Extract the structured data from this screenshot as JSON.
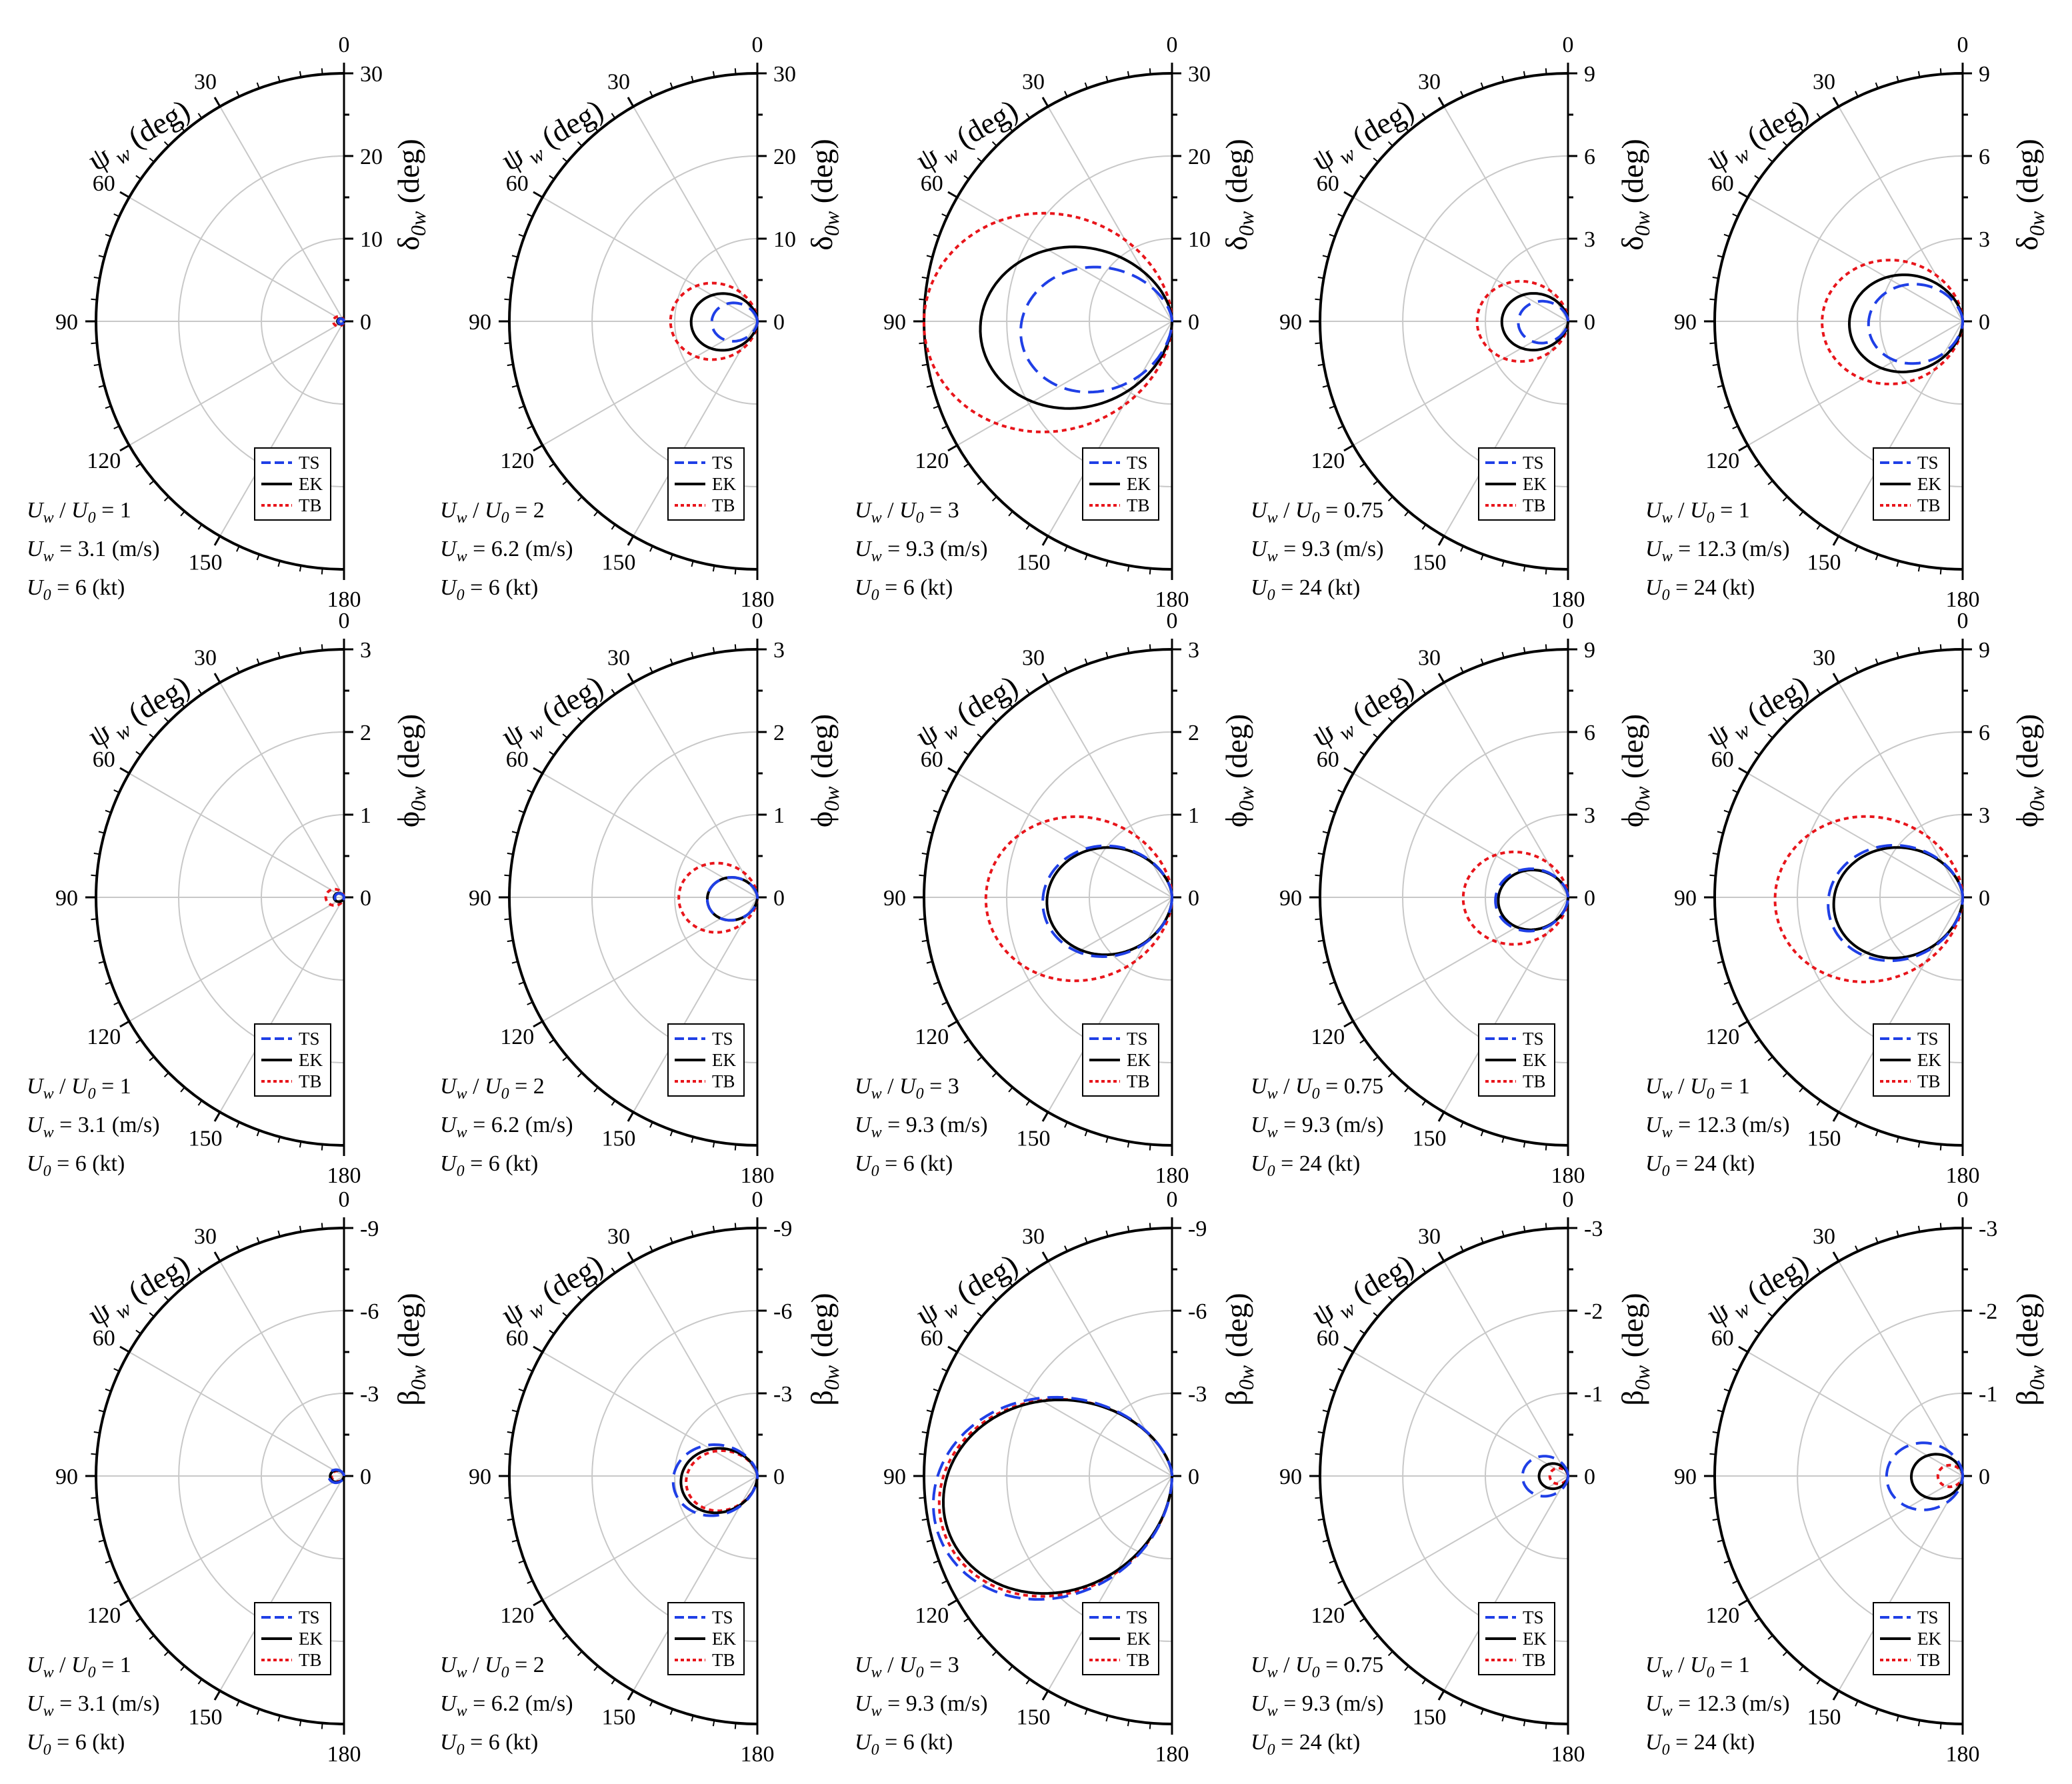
{
  "chart_data": {
    "type": "polar",
    "grid": true,
    "angle_axis": {
      "title": "ψ_w (deg)",
      "symbol": "ψ",
      "subscript": "w",
      "unit": "(deg)",
      "ticks": [
        0,
        30,
        60,
        90,
        120,
        150,
        180
      ]
    },
    "legend": [
      "TS",
      "EK",
      "TB"
    ],
    "colors": {
      "TS": "#1f3fe6",
      "EK": "#000000",
      "TB": "#e8151b"
    },
    "rows": [
      {
        "symbol": "δ",
        "subscript": "0w",
        "unit": "(deg)"
      },
      {
        "symbol": "ϕ",
        "subscript": "0w",
        "unit": "(deg)"
      },
      {
        "symbol": "β",
        "subscript": "0w",
        "unit": "(deg)"
      }
    ],
    "columns": [
      {
        "ratio_text": "U_w / U_0 = 1",
        "ratio": "1",
        "uw": "3.1",
        "uw_unit": "(m/s)",
        "u0": "6",
        "u0_unit": "(kt)"
      },
      {
        "ratio_text": "U_w / U_0 = 2",
        "ratio": "2",
        "uw": "6.2",
        "uw_unit": "(m/s)",
        "u0": "6",
        "u0_unit": "(kt)"
      },
      {
        "ratio_text": "U_w / U_0 = 3",
        "ratio": "3",
        "uw": "9.3",
        "uw_unit": "(m/s)",
        "u0": "6",
        "u0_unit": "(kt)"
      },
      {
        "ratio_text": "U_w / U_0 = 0.75",
        "ratio": "0.75",
        "uw": "9.3",
        "uw_unit": "(m/s)",
        "u0": "24",
        "u0_unit": "(kt)"
      },
      {
        "ratio_text": "U_w / U_0 = 1",
        "ratio": "1",
        "uw": "12.3",
        "uw_unit": "(m/s)",
        "u0": "24",
        "u0_unit": "(kt)"
      }
    ],
    "panels": [
      {
        "row": 0,
        "col": 0,
        "r_ticks": [
          "0",
          "10",
          "20",
          "30"
        ],
        "r_max": 30,
        "series": {
          "TS": {
            "peak": 0.7,
            "center": 90,
            "width": 0.9
          },
          "EK": {
            "peak": 0.8,
            "center": 90,
            "width": 0.9
          },
          "TB": {
            "peak": 1.3,
            "center": 90,
            "width": 1.0
          }
        }
      },
      {
        "row": 0,
        "col": 1,
        "r_ticks": [
          "0",
          "10",
          "20",
          "30"
        ],
        "r_max": 30,
        "series": {
          "TS": {
            "peak": 5.5,
            "center": 95,
            "width": 0.8
          },
          "EK": {
            "peak": 8.0,
            "center": 93,
            "width": 0.85
          },
          "TB": {
            "peak": 10.5,
            "center": 90,
            "width": 0.95
          }
        }
      },
      {
        "row": 0,
        "col": 2,
        "r_ticks": [
          "0",
          "10",
          "20",
          "30"
        ],
        "r_max": 30,
        "series": {
          "TS": {
            "peak": 18.0,
            "center": 105,
            "width": 0.75
          },
          "EK": {
            "peak": 23.0,
            "center": 100,
            "width": 0.8
          },
          "TB": {
            "peak": 30.0,
            "center": 92,
            "width": 0.95
          }
        }
      },
      {
        "row": 0,
        "col": 3,
        "r_ticks": [
          "0",
          "3",
          "6",
          "9"
        ],
        "r_max": 9,
        "series": {
          "TS": {
            "peak": 1.8,
            "center": 95,
            "width": 0.8
          },
          "EK": {
            "peak": 2.4,
            "center": 92,
            "width": 0.85
          },
          "TB": {
            "peak": 3.3,
            "center": 90,
            "width": 0.95
          }
        }
      },
      {
        "row": 0,
        "col": 4,
        "r_ticks": [
          "0",
          "3",
          "6",
          "9"
        ],
        "r_max": 9,
        "series": {
          "TS": {
            "peak": 3.4,
            "center": 98,
            "width": 0.8
          },
          "EK": {
            "peak": 4.1,
            "center": 96,
            "width": 0.85
          },
          "TB": {
            "peak": 5.1,
            "center": 92,
            "width": 0.95
          }
        }
      },
      {
        "row": 1,
        "col": 0,
        "r_ticks": [
          "0",
          "1",
          "2",
          "3"
        ],
        "r_max": 3,
        "series": {
          "TS": {
            "peak": 0.11,
            "center": 92,
            "width": 0.9
          },
          "EK": {
            "peak": 0.12,
            "center": 92,
            "width": 0.9
          },
          "TB": {
            "peak": 0.22,
            "center": 90,
            "width": 1.0
          }
        }
      },
      {
        "row": 1,
        "col": 1,
        "r_ticks": [
          "0",
          "1",
          "2",
          "3"
        ],
        "r_max": 3,
        "series": {
          "TS": {
            "peak": 0.6,
            "center": 100,
            "width": 0.85
          },
          "EK": {
            "peak": 0.6,
            "center": 100,
            "width": 0.85
          },
          "TB": {
            "peak": 0.95,
            "center": 92,
            "width": 0.95
          }
        }
      },
      {
        "row": 1,
        "col": 2,
        "r_ticks": [
          "0",
          "1",
          "2",
          "3"
        ],
        "r_max": 3,
        "series": {
          "TS": {
            "peak": 1.55,
            "center": 100,
            "width": 0.85
          },
          "EK": {
            "peak": 1.5,
            "center": 100,
            "width": 0.85
          },
          "TB": {
            "peak": 2.25,
            "center": 93,
            "width": 0.95
          }
        }
      },
      {
        "row": 1,
        "col": 3,
        "r_ticks": [
          "0",
          "3",
          "6",
          "9"
        ],
        "r_max": 9,
        "series": {
          "TS": {
            "peak": 2.6,
            "center": 102,
            "width": 0.85
          },
          "EK": {
            "peak": 2.5,
            "center": 102,
            "width": 0.85
          },
          "TB": {
            "peak": 3.8,
            "center": 93,
            "width": 0.95
          }
        }
      },
      {
        "row": 1,
        "col": 4,
        "r_ticks": [
          "0",
          "3",
          "6",
          "9"
        ],
        "r_max": 9,
        "series": {
          "TS": {
            "peak": 4.8,
            "center": 104,
            "width": 0.85
          },
          "EK": {
            "peak": 4.6,
            "center": 104,
            "width": 0.85
          },
          "TB": {
            "peak": 6.8,
            "center": 94,
            "width": 0.95
          }
        }
      },
      {
        "row": 2,
        "col": 0,
        "r_ticks": [
          "0",
          "-3",
          "-6",
          "-9"
        ],
        "r_max": 9,
        "series": {
          "TS": {
            "peak": 0.55,
            "center": 95,
            "width": 0.85
          },
          "EK": {
            "peak": 0.5,
            "center": 95,
            "width": 0.85
          },
          "TB": {
            "peak": 0.45,
            "center": 95,
            "width": 0.85
          }
        }
      },
      {
        "row": 2,
        "col": 1,
        "r_ticks": [
          "0",
          "-3",
          "-6",
          "-9"
        ],
        "r_max": 9,
        "series": {
          "TS": {
            "peak": 3.0,
            "center": 105,
            "width": 0.8
          },
          "EK": {
            "peak": 2.7,
            "center": 108,
            "width": 0.8
          },
          "TB": {
            "peak": 2.5,
            "center": 110,
            "width": 0.8
          }
        }
      },
      {
        "row": 2,
        "col": 2,
        "r_ticks": [
          "0",
          "-3",
          "-6",
          "-9"
        ],
        "r_max": 9,
        "series": {
          "TS": {
            "peak": 8.1,
            "center": 118,
            "width": 0.8
          },
          "EK": {
            "peak": 7.8,
            "center": 117,
            "width": 0.8
          },
          "TB": {
            "peak": 7.9,
            "center": 118,
            "width": 0.8
          }
        }
      },
      {
        "row": 2,
        "col": 3,
        "r_ticks": [
          "0",
          "-1",
          "-2",
          "-3"
        ],
        "r_max": 3,
        "series": {
          "TS": {
            "peak": 0.55,
            "center": 92,
            "width": 0.95
          },
          "EK": {
            "peak": 0.35,
            "center": 92,
            "width": 0.9
          },
          "TB": {
            "peak": 0.22,
            "center": 90,
            "width": 0.9
          }
        }
      },
      {
        "row": 2,
        "col": 4,
        "r_ticks": [
          "0",
          "-1",
          "-2",
          "-3"
        ],
        "r_max": 3,
        "series": {
          "TS": {
            "peak": 0.92,
            "center": 92,
            "width": 0.95
          },
          "EK": {
            "peak": 0.62,
            "center": 94,
            "width": 0.9
          },
          "TB": {
            "peak": 0.3,
            "center": 90,
            "width": 0.9
          }
        }
      }
    ]
  }
}
